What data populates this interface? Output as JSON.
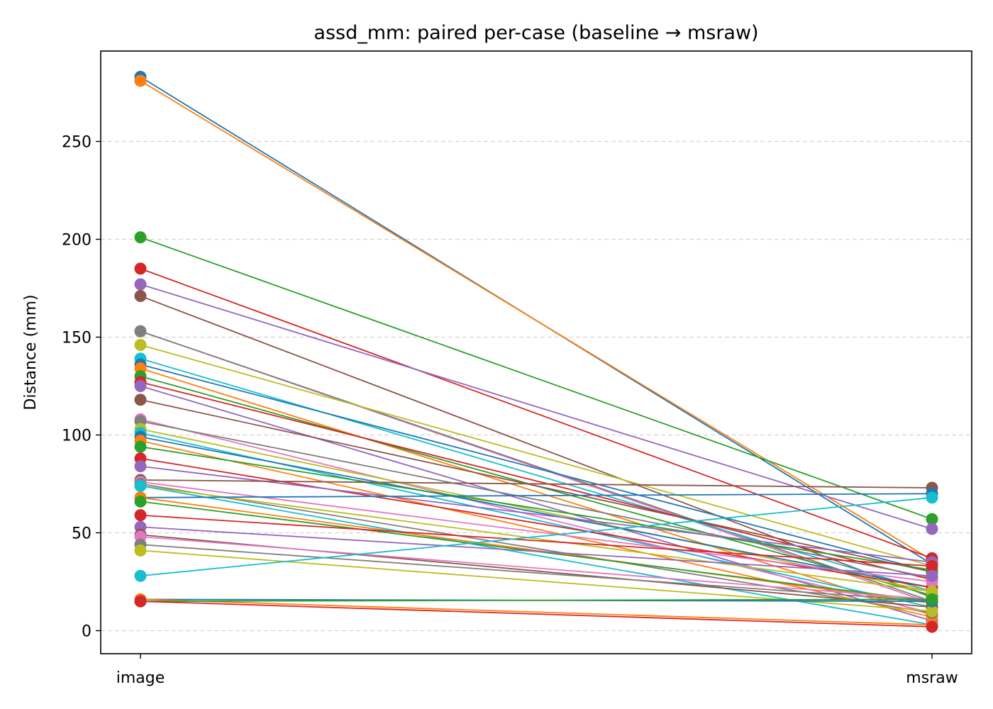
{
  "chart_data": {
    "type": "line",
    "title": "assd_mm: paired per-case (baseline → msraw)",
    "xlabel": "",
    "ylabel": "Distance (mm)",
    "categories": [
      "image",
      "msraw"
    ],
    "ylim": [
      -12,
      292
    ],
    "yticks": [
      0,
      50,
      100,
      150,
      200,
      250
    ],
    "grid": {
      "y": true,
      "x": false,
      "style": "dashed"
    },
    "colors": [
      "#1f77b4",
      "#ff7f0e",
      "#2ca02c",
      "#d62728",
      "#9467bd",
      "#8c564b",
      "#e377c2",
      "#7f7f7f",
      "#bcbd22",
      "#17becf"
    ],
    "pairs": [
      [
        283,
        34
      ],
      [
        281,
        36
      ],
      [
        201,
        57
      ],
      [
        185,
        37
      ],
      [
        177,
        52
      ],
      [
        171,
        17
      ],
      [
        153,
        14
      ],
      [
        153,
        15
      ],
      [
        146,
        33
      ],
      [
        139,
        20
      ],
      [
        136,
        30
      ],
      [
        134,
        8
      ],
      [
        130,
        18
      ],
      [
        127,
        26
      ],
      [
        125,
        5
      ],
      [
        118,
        30
      ],
      [
        108,
        9
      ],
      [
        107,
        27
      ],
      [
        103,
        20
      ],
      [
        101,
        12
      ],
      [
        99,
        22
      ],
      [
        97,
        7
      ],
      [
        94,
        31
      ],
      [
        88,
        22
      ],
      [
        84,
        35
      ],
      [
        77,
        73
      ],
      [
        76,
        25
      ],
      [
        75,
        9
      ],
      [
        74,
        20
      ],
      [
        74,
        3
      ],
      [
        68,
        70
      ],
      [
        68,
        14
      ],
      [
        66,
        15
      ],
      [
        59,
        33
      ],
      [
        53,
        28
      ],
      [
        49,
        12
      ],
      [
        48,
        16
      ],
      [
        44,
        15
      ],
      [
        41,
        10
      ],
      [
        28,
        68
      ],
      [
        16,
        15
      ],
      [
        16,
        3
      ],
      [
        15,
        16
      ],
      [
        15,
        2
      ]
    ]
  }
}
